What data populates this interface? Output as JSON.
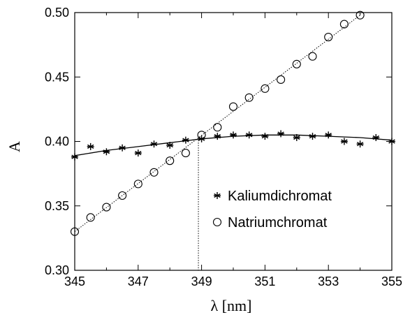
{
  "chart_data": {
    "type": "scatter",
    "title": "",
    "xlabel": "λ [nm]",
    "ylabel": "A",
    "xlim": [
      345,
      355
    ],
    "ylim": [
      0.3,
      0.5
    ],
    "x_ticks": [
      "345",
      "347",
      "349",
      "351",
      "353",
      "355"
    ],
    "y_ticks": [
      "0.30",
      "0.35",
      "0.40",
      "0.45",
      "0.50"
    ],
    "grid": false,
    "legend_position": "lower-right",
    "series": [
      {
        "name": "Kaliumdichromat",
        "marker": "asterisk",
        "fit_line": "solid",
        "fit_curve": [
          [
            345,
            0.389
          ],
          [
            346,
            0.393
          ],
          [
            347,
            0.396
          ],
          [
            348,
            0.399
          ],
          [
            349,
            0.402
          ],
          [
            350,
            0.404
          ],
          [
            351,
            0.405
          ],
          [
            352,
            0.405
          ],
          [
            353,
            0.404
          ],
          [
            354,
            0.403
          ],
          [
            355,
            0.401
          ]
        ],
        "points": [
          [
            345,
            0.388
          ],
          [
            345.5,
            0.396
          ],
          [
            346,
            0.392
          ],
          [
            346.5,
            0.395
          ],
          [
            347,
            0.391
          ],
          [
            347.5,
            0.398
          ],
          [
            348,
            0.397
          ],
          [
            348.5,
            0.401
          ],
          [
            349,
            0.402
          ],
          [
            349.5,
            0.404
          ],
          [
            350,
            0.405
          ],
          [
            350.5,
            0.405
          ],
          [
            351,
            0.404
          ],
          [
            351.5,
            0.406
          ],
          [
            352,
            0.403
          ],
          [
            352.5,
            0.404
          ],
          [
            353,
            0.405
          ],
          [
            353.5,
            0.4
          ],
          [
            354,
            0.398
          ],
          [
            354.5,
            0.403
          ],
          [
            355,
            0.4
          ]
        ]
      },
      {
        "name": "Natriumchromat",
        "marker": "open-circle",
        "fit_line": "dotted",
        "fit_curve": [
          [
            345,
            0.33
          ],
          [
            354,
            0.498
          ]
        ],
        "points": [
          [
            345,
            0.33
          ],
          [
            345.5,
            0.341
          ],
          [
            346,
            0.349
          ],
          [
            346.5,
            0.358
          ],
          [
            347,
            0.367
          ],
          [
            347.5,
            0.376
          ],
          [
            348,
            0.385
          ],
          [
            348.5,
            0.391
          ],
          [
            349,
            0.405
          ],
          [
            349.5,
            0.411
          ],
          [
            350,
            0.427
          ],
          [
            350.5,
            0.434
          ],
          [
            351,
            0.441
          ],
          [
            351.5,
            0.448
          ],
          [
            352,
            0.46
          ],
          [
            352.5,
            0.466
          ],
          [
            353,
            0.481
          ],
          [
            353.5,
            0.491
          ],
          [
            354,
            0.498
          ]
        ]
      }
    ],
    "annotations": [
      {
        "type": "vertical-dotted-line",
        "x": 348.9,
        "y_from": 0.3,
        "y_to": 0.401
      }
    ]
  }
}
